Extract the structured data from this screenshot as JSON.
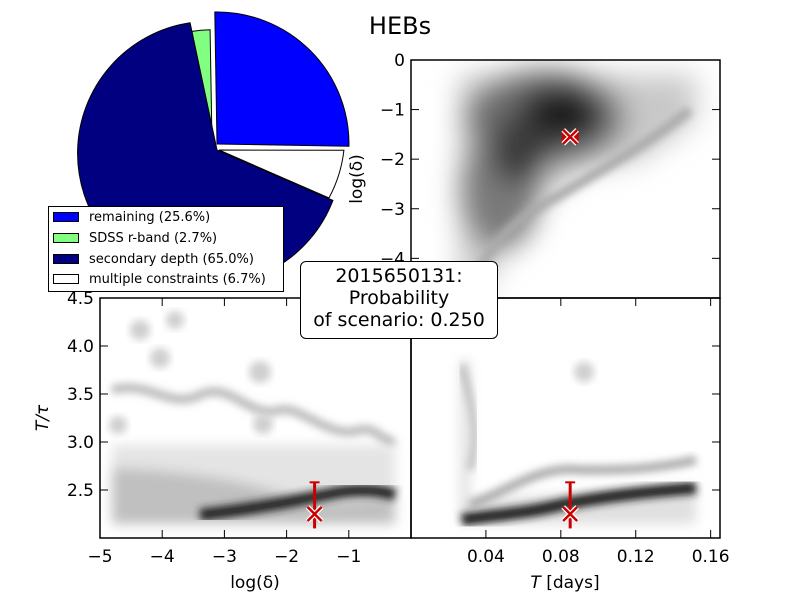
{
  "chart_data": [
    {
      "type": "pie",
      "title": "HEBs",
      "slices": [
        {
          "label": "remaining (25.6%)",
          "value": 25.6,
          "color": "#0000ff",
          "exploded": true
        },
        {
          "label": "SDSS r-band (2.7%)",
          "value": 2.7,
          "color": "#80ff80",
          "exploded": true
        },
        {
          "label": "secondary depth (65.0%)",
          "value": 65.0,
          "color": "#000080",
          "exploded": false
        },
        {
          "label": "multiple constraints (6.7%)",
          "value": 6.7,
          "color": "#ffffff",
          "exploded": true
        }
      ],
      "legend": "lower-left"
    },
    {
      "type": "heatmap",
      "panel": "upper-right",
      "xlabel": "",
      "ylabel": "log(δ)",
      "xlim": [
        0.0,
        0.165
      ],
      "ylim": [
        -4.8,
        0
      ],
      "yticks": [
        "0",
        "−1",
        "−2",
        "−3",
        "−4"
      ],
      "marker": {
        "x": 0.085,
        "y": -1.55,
        "xerr": 0.004,
        "yerr": 0.05
      }
    },
    {
      "type": "heatmap",
      "panel": "lower-left",
      "xlabel": "log(δ)",
      "ylabel": "T/τ",
      "xlim": [
        -5,
        0
      ],
      "ylim": [
        2.0,
        4.5
      ],
      "xticks": [
        "−5",
        "−4",
        "−3",
        "−2",
        "−1"
      ],
      "yticks": [
        "2.5",
        "3.0",
        "3.5",
        "4.0",
        "4.5"
      ],
      "marker": {
        "x": -1.55,
        "y": 2.25,
        "yerr_low": 0.15,
        "yerr_high": 0.33
      }
    },
    {
      "type": "heatmap",
      "panel": "lower-right",
      "xlabel": "T [days]",
      "ylabel": "",
      "xlim": [
        0.0,
        0.165
      ],
      "ylim": [
        2.0,
        4.5
      ],
      "xticks": [
        "0.04",
        "0.08",
        "0.12",
        "0.16"
      ],
      "marker": {
        "x": 0.085,
        "y": 2.25,
        "yerr_low": 0.15,
        "yerr_high": 0.33
      }
    }
  ],
  "info_box": {
    "line1": "2015650131:",
    "line2": "Probability",
    "line3": "of scenario: 0.250"
  },
  "colors": {
    "marker": "#cc0000"
  }
}
